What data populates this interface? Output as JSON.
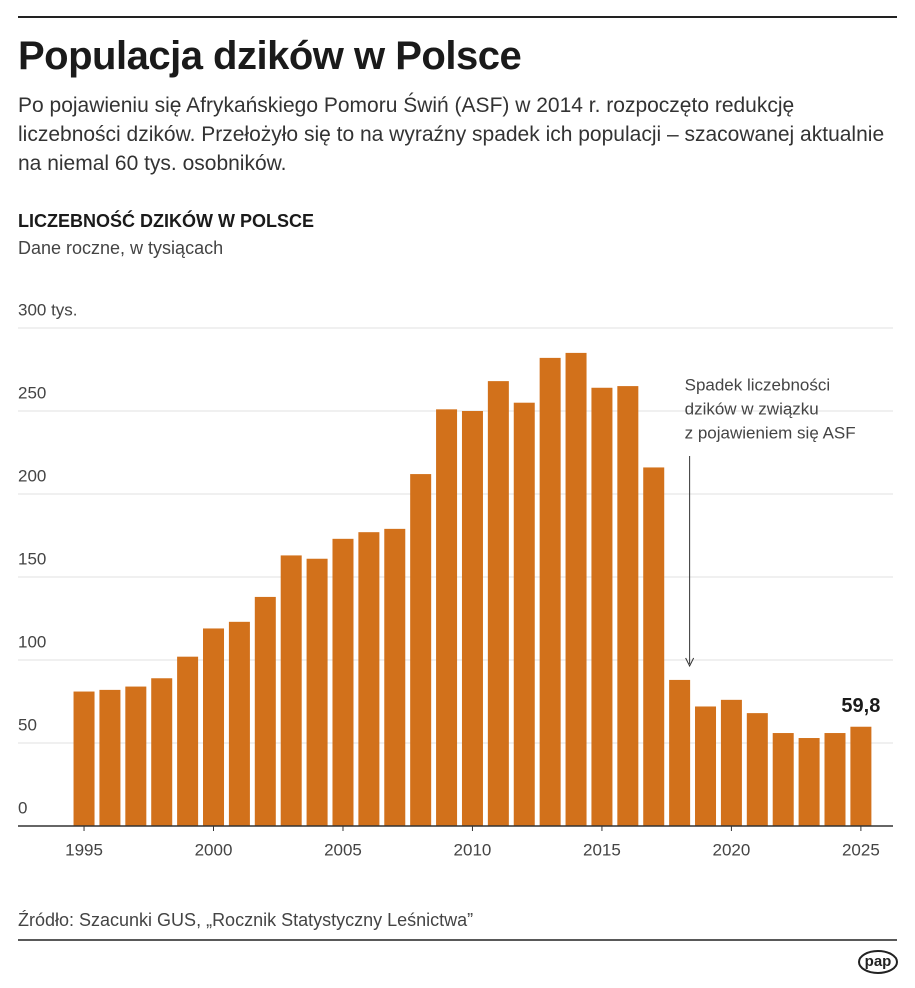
{
  "headline": "Populacja dzików w Polsce",
  "description": "Po pojawieniu się Afrykańskiego Pomoru Świń (ASF) w 2014 r. rozpoczęto redukcję liczebności dzików. Przełożyło się to na wyraźny spadek ich populacji – szacowanej aktualnie na niemal 60 tys. osobników.",
  "chart_data": {
    "type": "bar",
    "title": "LICZEBNOŚĆ DZIKÓW W POLSCE",
    "subtitle": "Dane roczne, w tysiącach",
    "x": [
      1995,
      1996,
      1997,
      1998,
      1999,
      2000,
      2001,
      2002,
      2003,
      2004,
      2005,
      2006,
      2007,
      2008,
      2009,
      2010,
      2011,
      2012,
      2013,
      2014,
      2015,
      2016,
      2017,
      2018,
      2019,
      2020,
      2021,
      2022,
      2023,
      2024,
      2025
    ],
    "values": [
      81,
      82,
      84,
      89,
      102,
      119,
      123,
      138,
      163,
      161,
      173,
      177,
      179,
      212,
      251,
      250,
      268,
      255,
      282,
      285,
      264,
      265,
      216,
      88,
      72,
      76,
      68,
      56,
      53,
      56,
      59.8
    ],
    "value_labels": [
      null,
      null,
      null,
      null,
      null,
      null,
      null,
      null,
      null,
      null,
      null,
      null,
      null,
      null,
      null,
      null,
      null,
      null,
      null,
      null,
      null,
      null,
      null,
      null,
      null,
      null,
      null,
      null,
      null,
      null,
      "59,8"
    ],
    "color": "#d2711b",
    "xlim": [
      1992.45,
      2026.24
    ],
    "xticks": [
      1995,
      2000,
      2005,
      2010,
      2015,
      2020,
      2025
    ],
    "ylim": [
      0,
      300
    ],
    "yticks": [
      0,
      50,
      100,
      150,
      200,
      250,
      {
        "value": 300,
        "label": "300 tys."
      }
    ],
    "grid": true,
    "annotation": {
      "x": 2018,
      "lines": [
        "Spadek liczebności",
        "dzików w związku",
        "z pojawieniem się ASF"
      ]
    },
    "source": "Źródło: Szacunki GUS, „Rocznik Statystyczny Leśnictwa”"
  },
  "logo": "pap"
}
